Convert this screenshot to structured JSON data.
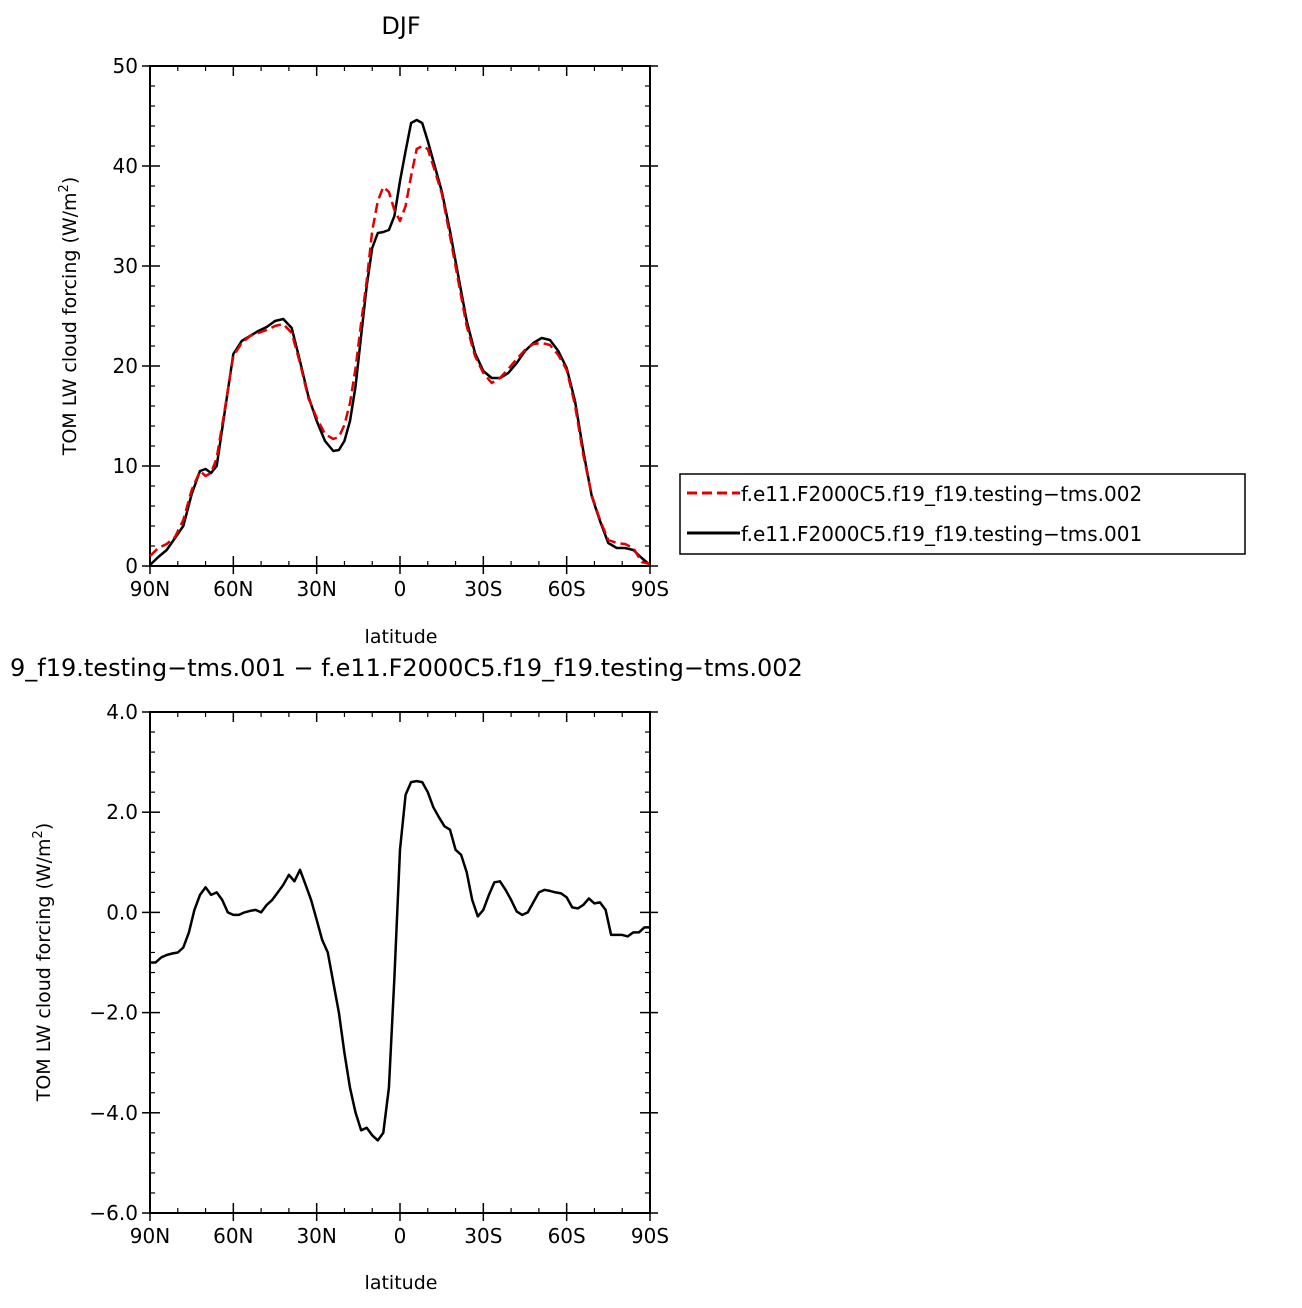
{
  "chart_data": [
    {
      "type": "line",
      "title": "DJF",
      "xlabel": "latitude",
      "ylabel_main": "TOM LW cloud forcing (W/m",
      "ylabel_sup": "2",
      "ylabel_end": ")",
      "xlim": [
        -90,
        90
      ],
      "ylim": [
        0,
        50
      ],
      "xticks": [
        {
          "v": -90,
          "label": "90N"
        },
        {
          "v": -60,
          "label": "60N"
        },
        {
          "v": -30,
          "label": "30N"
        },
        {
          "v": 0,
          "label": "0"
        },
        {
          "v": 30,
          "label": "30S"
        },
        {
          "v": 60,
          "label": "60S"
        },
        {
          "v": 90,
          "label": "90S"
        }
      ],
      "yticks": [
        {
          "v": 0,
          "label": "0"
        },
        {
          "v": 10,
          "label": "10"
        },
        {
          "v": 20,
          "label": "20"
        },
        {
          "v": 30,
          "label": "30"
        },
        {
          "v": 40,
          "label": "40"
        },
        {
          "v": 50,
          "label": "50"
        }
      ],
      "legend": {
        "placement": "right"
      },
      "series": [
        {
          "name": "f.e11.F2000C5.f19_f19.testing−tms.002",
          "color": "#e00000",
          "dash": "dashed",
          "x": [
            -90,
            -87,
            -84,
            -81,
            -78,
            -75,
            -72,
            -70,
            -68,
            -66,
            -63,
            -60,
            -57,
            -54,
            -51,
            -48,
            -45,
            -42,
            -39,
            -36,
            -33,
            -30,
            -27,
            -24,
            -22,
            -20,
            -18,
            -16,
            -14,
            -12,
            -10,
            -8,
            -6,
            -4,
            -2,
            0,
            2,
            4,
            6,
            8,
            10,
            12,
            15,
            18,
            21,
            24,
            27,
            30,
            33,
            36,
            39,
            42,
            45,
            48,
            51,
            54,
            57,
            60,
            63,
            66,
            69,
            72,
            75,
            78,
            81,
            84,
            87,
            90
          ],
          "y": [
            1.0,
            1.8,
            2.2,
            2.9,
            4.6,
            7.6,
            9.5,
            9.0,
            9.3,
            10.8,
            15.8,
            21.0,
            22.3,
            23.0,
            23.3,
            23.6,
            24.0,
            24.2,
            23.3,
            20.3,
            16.8,
            14.8,
            13.2,
            12.7,
            12.9,
            14.1,
            16.3,
            19.8,
            24.3,
            28.5,
            33.5,
            36.5,
            37.9,
            37.4,
            35.6,
            34.5,
            36.0,
            39.0,
            41.7,
            42.0,
            41.7,
            40.0,
            37.3,
            33.0,
            28.5,
            24.0,
            21.0,
            19.3,
            18.3,
            18.8,
            19.7,
            20.7,
            21.6,
            22.2,
            22.3,
            22.1,
            21.1,
            19.6,
            16.1,
            11.1,
            7.1,
            4.6,
            2.6,
            2.3,
            2.2,
            1.8,
            0.4,
            0.2
          ]
        },
        {
          "name": "f.e11.F2000C5.f19_f19.testing−tms.001",
          "color": "#000000",
          "dash": "solid",
          "x": [
            -90,
            -87,
            -84,
            -81,
            -78,
            -75,
            -72,
            -70,
            -68,
            -66,
            -63,
            -60,
            -57,
            -54,
            -51,
            -48,
            -45,
            -42,
            -39,
            -36,
            -33,
            -30,
            -27,
            -24,
            -22,
            -20,
            -18,
            -16,
            -14,
            -12,
            -10,
            -8,
            -6,
            -4,
            -2,
            0,
            2,
            4,
            6,
            8,
            10,
            12,
            15,
            18,
            21,
            24,
            27,
            30,
            33,
            36,
            39,
            42,
            45,
            48,
            51,
            54,
            57,
            60,
            63,
            66,
            69,
            72,
            75,
            78,
            81,
            84,
            87,
            90
          ],
          "y": [
            0.1,
            0.9,
            1.6,
            2.8,
            4.0,
            7.2,
            9.5,
            9.7,
            9.3,
            10.0,
            15.6,
            21.2,
            22.5,
            23.0,
            23.5,
            23.9,
            24.5,
            24.7,
            23.8,
            20.5,
            17.0,
            14.5,
            12.5,
            11.5,
            11.6,
            12.5,
            14.5,
            18.0,
            23.0,
            28.0,
            31.8,
            33.3,
            33.4,
            33.6,
            35.0,
            38.5,
            41.5,
            44.3,
            44.6,
            44.3,
            42.5,
            40.5,
            37.5,
            33.5,
            29.0,
            24.5,
            21.3,
            19.5,
            18.8,
            18.8,
            19.3,
            20.3,
            21.5,
            22.3,
            22.8,
            22.6,
            21.5,
            19.8,
            16.5,
            11.5,
            7.0,
            4.5,
            2.3,
            1.8,
            1.8,
            1.6,
            0.8,
            0.1
          ]
        }
      ]
    },
    {
      "type": "line",
      "title": "9_f19.testing−tms.001 − f.e11.F2000C5.f19_f19.testing−tms.002",
      "xlabel": "latitude",
      "ylabel_main": "TOM LW cloud forcing (W/m",
      "ylabel_sup": "2",
      "ylabel_end": ")",
      "xlim": [
        -90,
        90
      ],
      "ylim": [
        -6,
        4
      ],
      "xticks": [
        {
          "v": -90,
          "label": "90N"
        },
        {
          "v": -60,
          "label": "60N"
        },
        {
          "v": -30,
          "label": "30N"
        },
        {
          "v": 0,
          "label": "0"
        },
        {
          "v": 30,
          "label": "30S"
        },
        {
          "v": 60,
          "label": "60S"
        },
        {
          "v": 90,
          "label": "90S"
        }
      ],
      "yticks": [
        {
          "v": -6,
          "label": "−6.0"
        },
        {
          "v": -4,
          "label": "−4.0"
        },
        {
          "v": -2,
          "label": "−2.0"
        },
        {
          "v": 0,
          "label": "0.0"
        },
        {
          "v": 2,
          "label": "2.0"
        },
        {
          "v": 4,
          "label": "4.0"
        }
      ],
      "series": [
        {
          "name": "",
          "color": "#000000",
          "dash": "solid",
          "x": [
            -90,
            -88,
            -86,
            -84,
            -82,
            -80,
            -78,
            -76,
            -74,
            -72,
            -70,
            -68,
            -66,
            -64,
            -62,
            -60,
            -58,
            -56,
            -54,
            -52,
            -50,
            -48,
            -46,
            -44,
            -42,
            -40,
            -38,
            -36,
            -34,
            -32,
            -30,
            -28,
            -26,
            -24,
            -22,
            -20,
            -18,
            -16,
            -14,
            -12,
            -10,
            -8,
            -6,
            -4,
            -2,
            0,
            2,
            4,
            6,
            8,
            10,
            12,
            14,
            16,
            18,
            20,
            22,
            24,
            26,
            28,
            30,
            32,
            34,
            36,
            38,
            40,
            42,
            44,
            46,
            48,
            50,
            52,
            54,
            56,
            58,
            60,
            62,
            64,
            66,
            68,
            70,
            72,
            74,
            76,
            78,
            80,
            82,
            84,
            86,
            88,
            90
          ],
          "y": [
            -1.0,
            -1.0,
            -0.9,
            -0.85,
            -0.82,
            -0.8,
            -0.7,
            -0.4,
            0.05,
            0.35,
            0.5,
            0.35,
            0.4,
            0.25,
            0.0,
            -0.05,
            -0.05,
            0.0,
            0.03,
            0.05,
            0.0,
            0.15,
            0.25,
            0.4,
            0.55,
            0.75,
            0.62,
            0.85,
            0.55,
            0.25,
            -0.15,
            -0.55,
            -0.8,
            -1.4,
            -2.0,
            -2.8,
            -3.5,
            -4.0,
            -4.35,
            -4.3,
            -4.45,
            -4.55,
            -4.4,
            -3.5,
            -1.3,
            1.25,
            2.35,
            2.6,
            2.62,
            2.6,
            2.4,
            2.1,
            1.9,
            1.72,
            1.65,
            1.25,
            1.15,
            0.8,
            0.25,
            -0.08,
            0.05,
            0.35,
            0.6,
            0.62,
            0.45,
            0.25,
            0.02,
            -0.05,
            0.0,
            0.2,
            0.4,
            0.45,
            0.43,
            0.4,
            0.38,
            0.3,
            0.1,
            0.08,
            0.15,
            0.28,
            0.18,
            0.2,
            0.05,
            -0.45,
            -0.45,
            -0.45,
            -0.48,
            -0.4,
            -0.4,
            -0.3,
            -0.3
          ]
        }
      ]
    }
  ]
}
